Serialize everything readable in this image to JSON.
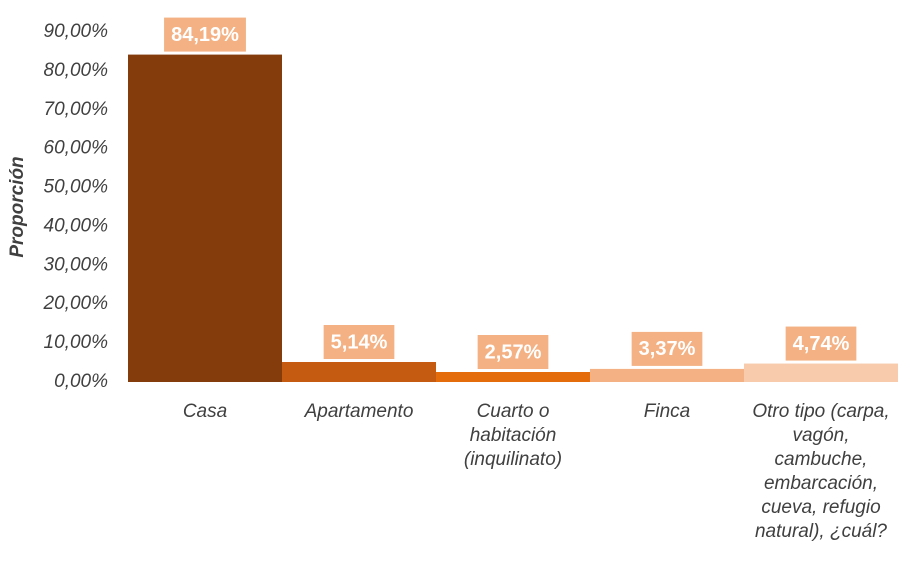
{
  "chart_data": {
    "type": "bar",
    "y_label": "Proporción",
    "categories": [
      "Casa",
      "Apartamento",
      "Cuarto o habitación (inquilinato)",
      "Finca",
      "Otro tipo (carpa, vagón, cambuche, embarcación, cueva, refugio natural), ¿cuál?"
    ],
    "values": [
      84.19,
      5.14,
      2.57,
      3.37,
      4.74
    ],
    "value_labels": [
      "84,19%",
      "5,14%",
      "2,57%",
      "3,37%",
      "4,74%"
    ],
    "colors": [
      "#843c0c",
      "#c55a11",
      "#e46c0a",
      "#f4b183",
      "#f8cbad"
    ],
    "label_box_color": "#f4b183",
    "ylim": [
      0,
      90
    ],
    "yticks": [
      {
        "value": 0,
        "label": "0,00%"
      },
      {
        "value": 10,
        "label": "10,00%"
      },
      {
        "value": 20,
        "label": "20,00%"
      },
      {
        "value": 30,
        "label": "30,00%"
      },
      {
        "value": 40,
        "label": "40,00%"
      },
      {
        "value": 50,
        "label": "50,00%"
      },
      {
        "value": 60,
        "label": "60,00%"
      },
      {
        "value": 70,
        "label": "70,00%"
      },
      {
        "value": 80,
        "label": "80,00%"
      },
      {
        "value": 90,
        "label": "90,00%"
      }
    ]
  }
}
